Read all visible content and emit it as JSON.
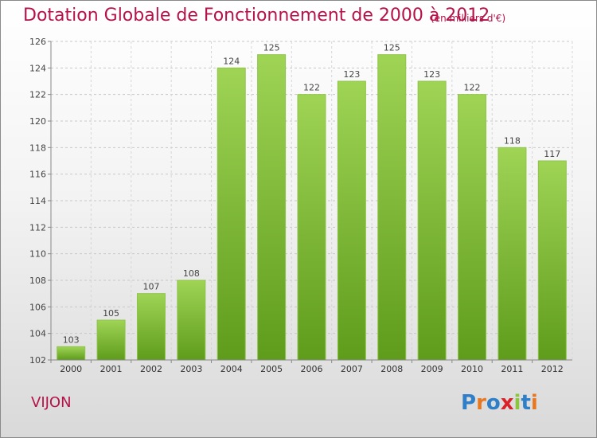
{
  "header": {
    "title": "Dotation Globale de Fonctionnement de 2000 à 2012",
    "subtitle": "(en milliers d'€)"
  },
  "footer": {
    "commune": "VIJON",
    "logo": "Proxiti"
  },
  "colors": {
    "accent": "#b5124a",
    "bar_top": "#9fd455",
    "bar_bottom": "#5f9c1c"
  },
  "chart_data": {
    "type": "bar",
    "title": "Dotation Globale de Fonctionnement de 2000 à 2012",
    "subtitle": "(en milliers d'€)",
    "xlabel": "",
    "ylabel": "",
    "categories": [
      "2000",
      "2001",
      "2002",
      "2003",
      "2004",
      "2005",
      "2006",
      "2007",
      "2008",
      "2009",
      "2010",
      "2011",
      "2012"
    ],
    "values": [
      103,
      105,
      107,
      108,
      124,
      125,
      122,
      123,
      125,
      123,
      122,
      118,
      117
    ],
    "ylim": [
      102,
      126
    ],
    "yticks": [
      102,
      104,
      106,
      108,
      110,
      112,
      114,
      116,
      118,
      120,
      122,
      124,
      126
    ],
    "grid": true,
    "data_labels": true
  }
}
